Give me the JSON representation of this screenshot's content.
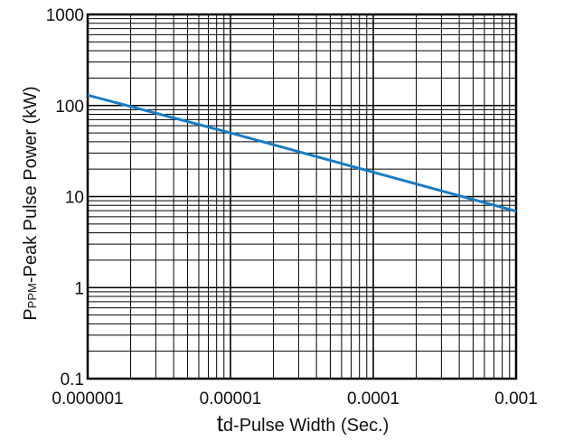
{
  "chart_data": {
    "type": "line",
    "xscale": "log",
    "yscale": "log",
    "xlim": [
      1e-06,
      0.001
    ],
    "ylim": [
      0.1,
      1000
    ],
    "grid": true,
    "x_ticks": [
      1e-06,
      1e-05,
      0.0001,
      0.001
    ],
    "x_tick_labels": [
      "0.000001",
      "0.00001",
      "0.0001",
      "0.001"
    ],
    "y_ticks": [
      0.1,
      1,
      10,
      100,
      1000
    ],
    "y_tick_labels": [
      "0.1",
      "1",
      "10",
      "100",
      "1000"
    ],
    "xlabel": {
      "prefix": "t",
      "subscript": "d",
      "text": "-Pulse Width (Sec.)"
    },
    "ylabel": {
      "prefix": "P",
      "subscript": "PPM",
      "text": "-Peak Pulse Power (kW)"
    },
    "series": [
      {
        "color": "#1a7cc4",
        "x": [
          1e-06,
          1e-05,
          0.0001,
          0.001
        ],
        "y": [
          130,
          50,
          18.5,
          6.9
        ]
      }
    ]
  }
}
